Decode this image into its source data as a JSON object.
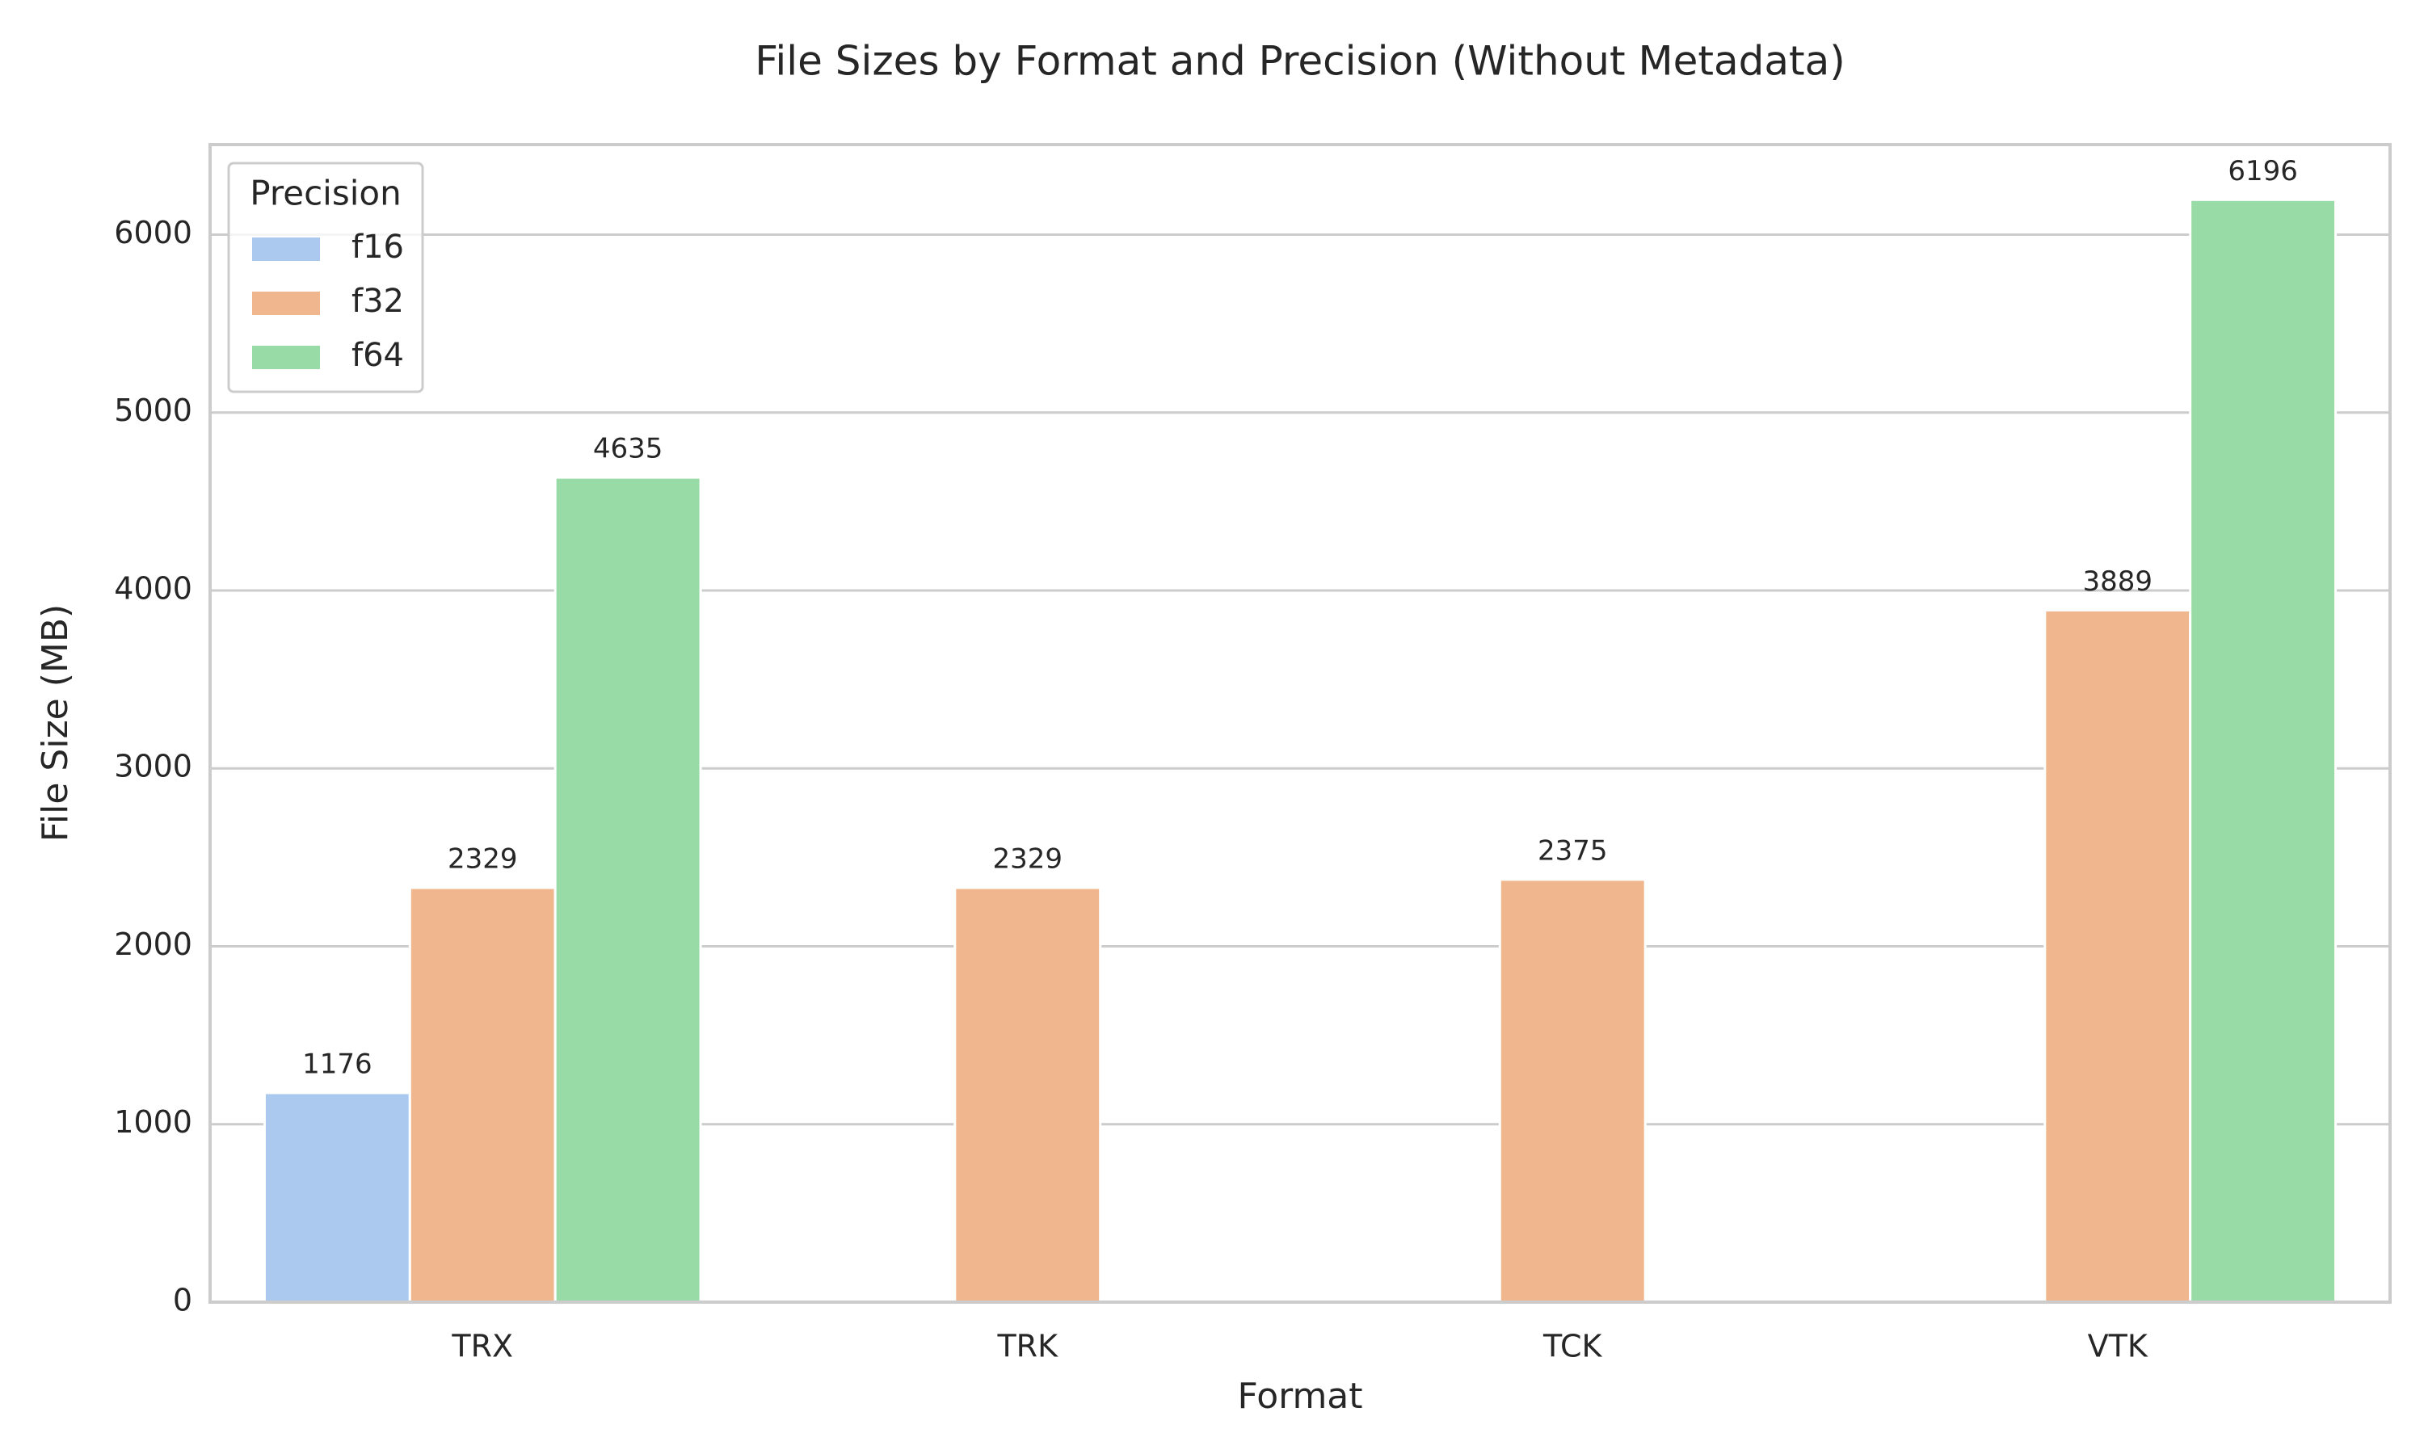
{
  "chart_data": {
    "type": "bar",
    "title": "File Sizes by Format and Precision (Without Metadata)",
    "x_label": "Format",
    "y_label": "File Size (MB)",
    "categories": [
      "TRX",
      "TRK",
      "TCK",
      "VTK"
    ],
    "series": [
      {
        "name": "f16",
        "color": "#abc9ee",
        "values": [
          1176,
          null,
          null,
          null
        ]
      },
      {
        "name": "f32",
        "color": "#f0b78f",
        "values": [
          2329,
          2329,
          2375,
          3889
        ]
      },
      {
        "name": "f64",
        "color": "#98dba6",
        "values": [
          4635,
          null,
          null,
          6196
        ]
      }
    ],
    "legend_title": "Precision",
    "legend_position": "upper left",
    "ylim": [
      0,
      6506
    ],
    "yticks": [
      0,
      1000,
      2000,
      3000,
      4000,
      5000,
      6000
    ],
    "grid": true
  }
}
